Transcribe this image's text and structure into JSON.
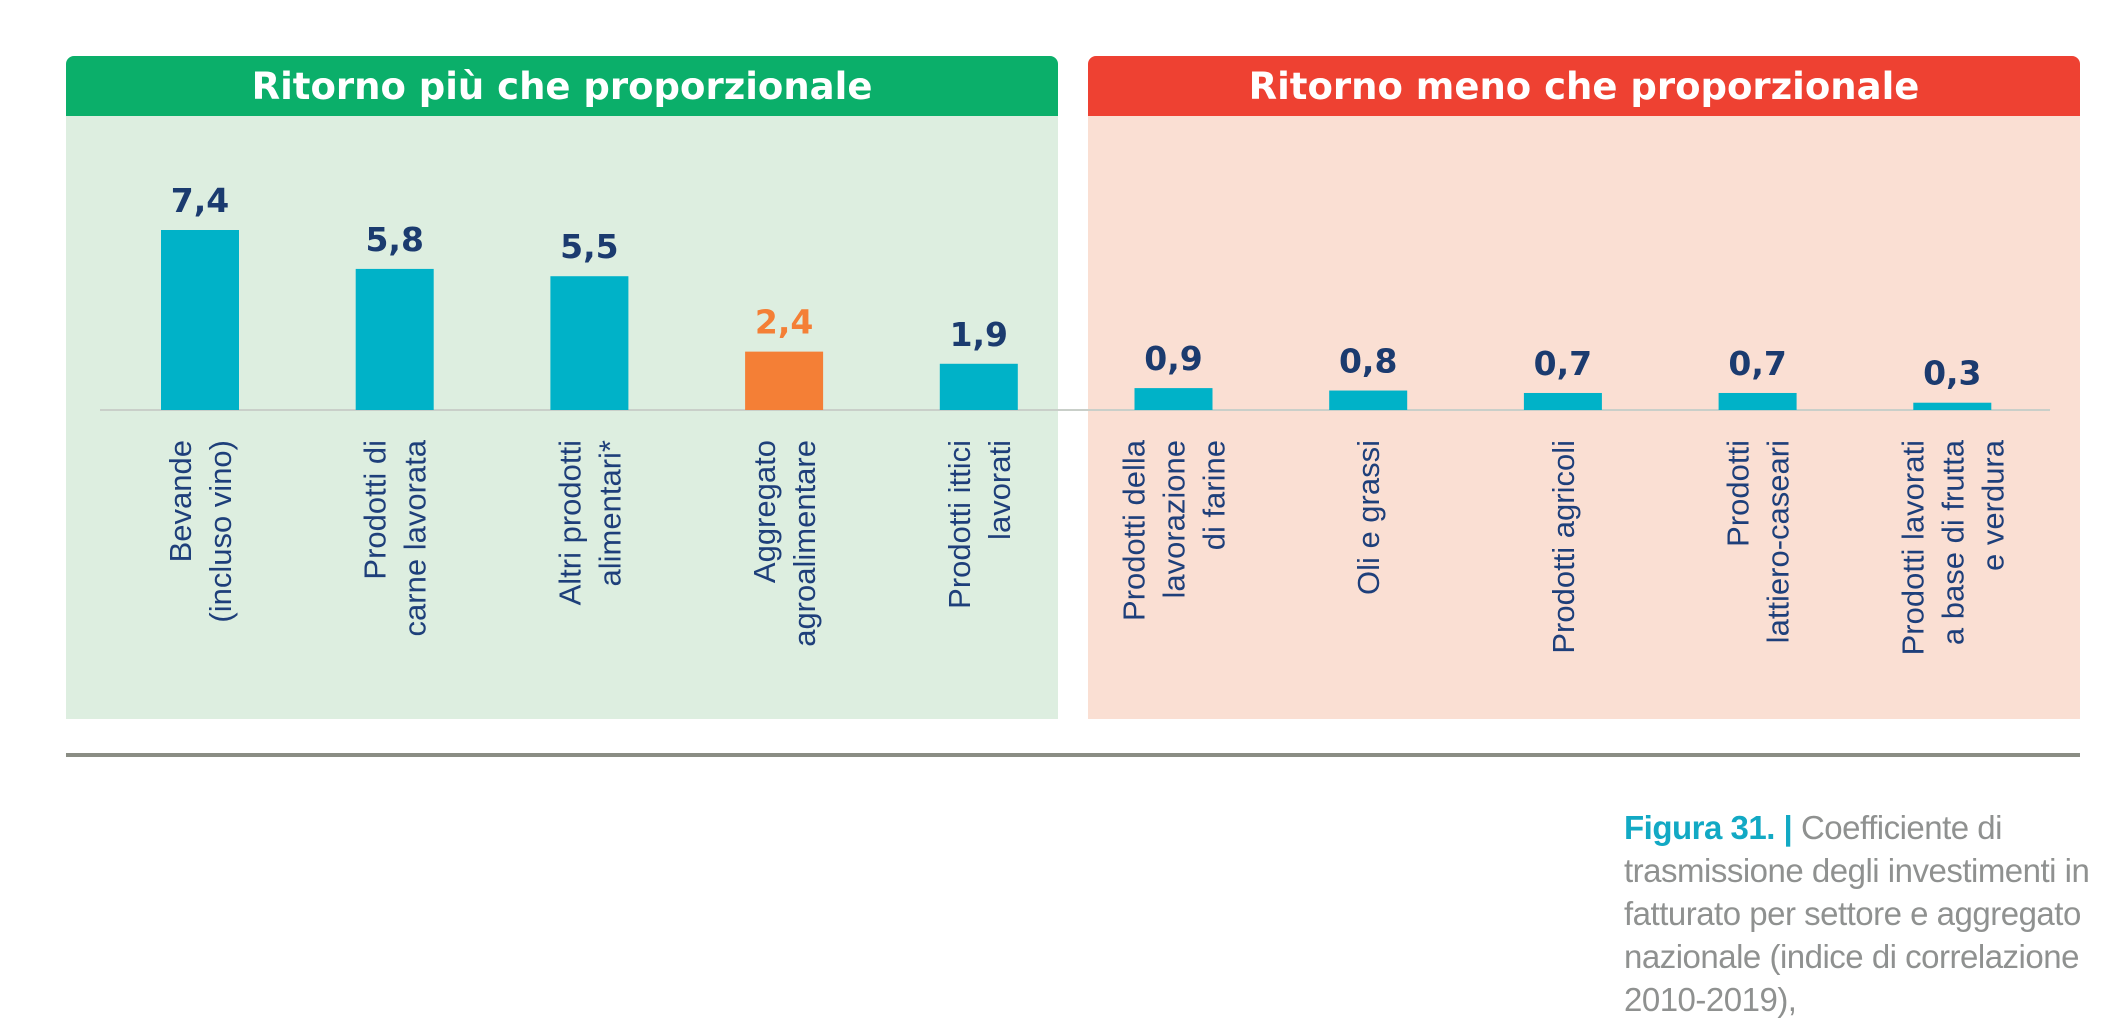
{
  "panels": {
    "left_title": "Ritorno più che proporzionale",
    "right_title": "Ritorno meno che proporzionale"
  },
  "caption": {
    "figure_label": "Figura 31. |",
    "text": "Coefficiente di trasmissione degli investimenti in fatturato per settore e aggregato nazionale (indice di correlazione 2010-2019),"
  },
  "colors": {
    "bar": "#00b2c8",
    "highlight_bar": "#f47f36",
    "value_label": "#1b3b6f",
    "highlight_label": "#f47f36",
    "category_label": "#1e3f7a"
  },
  "chart_data": {
    "type": "bar",
    "title": "",
    "xlabel": "",
    "ylabel": "",
    "ylim": [
      0,
      7.4
    ],
    "grid": false,
    "categories": [
      [
        "Bevande",
        "(incluso vino)"
      ],
      [
        "Prodotti di",
        "carne lavorata"
      ],
      [
        "Altri prodotti",
        "alimentari*"
      ],
      [
        "Aggregato",
        "agroalimentare"
      ],
      [
        "Prodotti ittici",
        "lavorati"
      ],
      [
        "Prodotti della",
        "lavorazione",
        "di farine"
      ],
      [
        "Oli e grassi"
      ],
      [
        "Prodotti agricoli"
      ],
      [
        "Prodotti",
        "lattiero-caseari"
      ],
      [
        "Prodotti lavorati",
        "a base di frutta",
        "e verdura"
      ]
    ],
    "values": [
      7.4,
      5.8,
      5.5,
      2.4,
      1.9,
      0.9,
      0.8,
      0.7,
      0.7,
      0.3
    ],
    "value_labels": [
      "7,4",
      "5,8",
      "5,5",
      "2,4",
      "1,9",
      "0,9",
      "0,8",
      "0,7",
      "0,7",
      "0,3"
    ],
    "highlight_index": 3,
    "groups": [
      {
        "name": "Ritorno più che proporzionale",
        "start": 0,
        "end": 4
      },
      {
        "name": "Ritorno meno che proporzionale",
        "start": 5,
        "end": 9
      }
    ]
  }
}
